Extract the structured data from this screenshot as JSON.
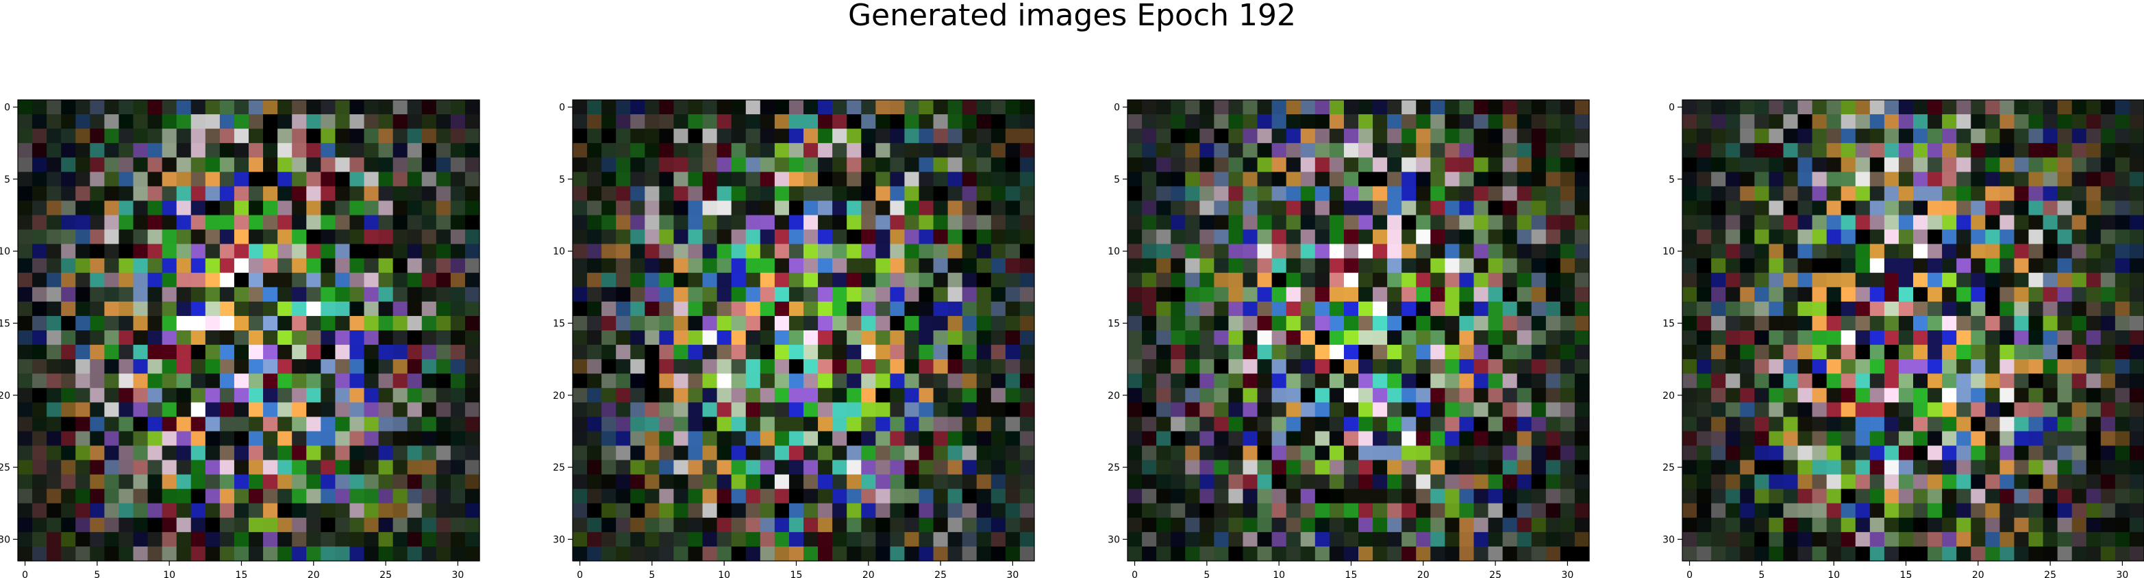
{
  "figure": {
    "title": "Generated images Epoch 192"
  },
  "chart_data": [
    {
      "type": "heatmap",
      "description": "32x32 RGB image grid",
      "grid": [
        32,
        32
      ],
      "x_ticks": [
        0,
        5,
        10,
        15,
        20,
        25,
        30
      ],
      "y_ticks": [
        0,
        5,
        10,
        15,
        20,
        25,
        30
      ],
      "xlim": [
        -0.5,
        31.5
      ],
      "ylim": [
        31.5,
        -0.5
      ],
      "seed": 192
    },
    {
      "type": "heatmap",
      "description": "32x32 RGB image grid",
      "grid": [
        32,
        32
      ],
      "x_ticks": [
        0,
        5,
        10,
        15,
        20,
        25,
        30
      ],
      "y_ticks": [
        0,
        5,
        10,
        15,
        20,
        25,
        30
      ],
      "xlim": [
        -0.5,
        31.5
      ],
      "ylim": [
        31.5,
        -0.5
      ],
      "seed": 193
    },
    {
      "type": "heatmap",
      "description": "32x32 RGB image grid",
      "grid": [
        32,
        32
      ],
      "x_ticks": [
        0,
        5,
        10,
        15,
        20,
        25,
        30
      ],
      "y_ticks": [
        0,
        5,
        10,
        15,
        20,
        25,
        30
      ],
      "xlim": [
        -0.5,
        31.5
      ],
      "ylim": [
        31.5,
        -0.5
      ],
      "seed": 194
    },
    {
      "type": "heatmap",
      "description": "32x32 RGB image grid",
      "grid": [
        32,
        32
      ],
      "x_ticks": [
        0,
        5,
        10,
        15,
        20,
        25,
        30
      ],
      "y_ticks": [
        0,
        5,
        10,
        15,
        20,
        25,
        30
      ],
      "xlim": [
        -0.5,
        31.5
      ],
      "ylim": [
        31.5,
        -0.5
      ],
      "seed": 195
    }
  ]
}
